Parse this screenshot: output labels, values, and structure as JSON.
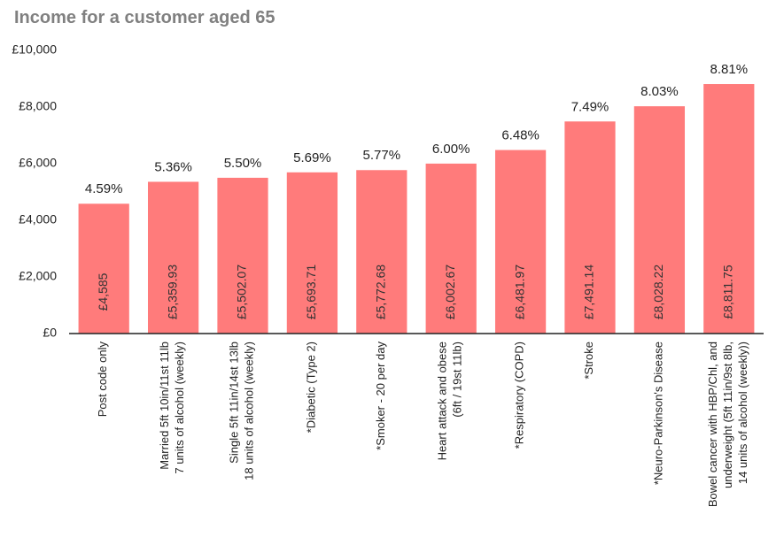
{
  "chart_data": {
    "type": "bar",
    "title": "Income for a customer aged 65",
    "categories": [
      "Post code only",
      "Married 5ft 10in/11st 11lb\n7 units of alcohol (weekly)",
      "Single 5ft 11in/14st 13lb\n18 units of alcohol (weekly)",
      "*Diabetic (Type 2)",
      "*Smoker - 20 per day",
      "Heart attack and obese\n(6ft / 19st 11lb)",
      "*Respiratory (COPD)",
      "*Stroke",
      "*Neuro-Parkinson's Disease",
      "Bowel cancer with HBP/Chl, and\nunderweight (5ft 11in/9st 8lb,\n14 units of alcohol (weekly))"
    ],
    "values": [
      4585,
      5359.93,
      5502.07,
      5693.71,
      5772.68,
      6002.67,
      6481.97,
      7491.14,
      8028.22,
      8811.75
    ],
    "value_labels": [
      "£4,585",
      "£5,359.93",
      "£5,502.07",
      "£5,693.71",
      "£5,772.68",
      "£6,002.67",
      "£6,481.97",
      "£7,491.14",
      "£8,028.22",
      "£8,811.75"
    ],
    "annotations": [
      "4.59%",
      "5.36%",
      "5.50%",
      "5.69%",
      "5.77%",
      "6.00%",
      "6.48%",
      "7.49%",
      "8.03%",
      "8.81%"
    ],
    "color": "#ff7b7b",
    "ylim": [
      0,
      10000
    ],
    "yticks": [
      {
        "value": 0,
        "label": "£0"
      },
      {
        "value": 2000,
        "label": "£2,000"
      },
      {
        "value": 4000,
        "label": "£4,000"
      },
      {
        "value": 6000,
        "label": "£6,000"
      },
      {
        "value": 8000,
        "label": "£8,000"
      },
      {
        "value": 10000,
        "label": "£10,000"
      }
    ],
    "grid": false
  }
}
